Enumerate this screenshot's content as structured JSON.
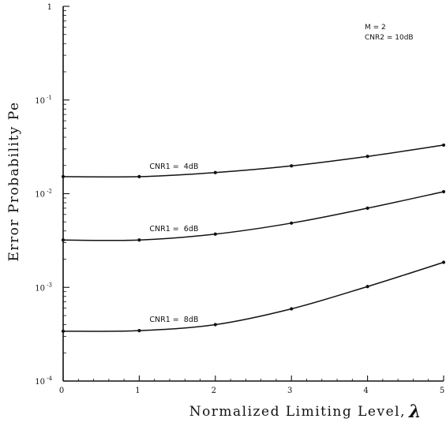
{
  "chart_data": {
    "type": "line",
    "title": "",
    "xlabel": "Normalized Limiting Level,",
    "xlabel_symbol": "λ",
    "ylabel": "Error Probability Pe",
    "xlim": [
      0,
      5
    ],
    "ylim": [
      0.0001,
      1
    ],
    "yscale": "log",
    "grid": false,
    "xticks": [
      "0",
      "1",
      "2",
      "3",
      "4",
      "5"
    ],
    "yticks": [
      {
        "value": 1,
        "base": "1",
        "exp": ""
      },
      {
        "value": 0.1,
        "base": "10",
        "exp": "-1"
      },
      {
        "value": 0.01,
        "base": "10",
        "exp": "-2"
      },
      {
        "value": 0.001,
        "base": "10",
        "exp": "-3"
      },
      {
        "value": 0.0001,
        "base": "10",
        "exp": "-4"
      }
    ],
    "annotations": [
      "M = 2",
      "CNR2 = 10dB"
    ],
    "series": [
      {
        "name": "CNR1 =  4dB",
        "x": [
          0,
          1,
          2,
          3,
          4,
          5
        ],
        "values": [
          0.0152,
          0.0152,
          0.0168,
          0.0198,
          0.025,
          0.033
        ]
      },
      {
        "name": "CNR1 =  6dB",
        "x": [
          0,
          1,
          2,
          3,
          4,
          5
        ],
        "values": [
          0.0032,
          0.0032,
          0.0037,
          0.00485,
          0.007,
          0.0105
        ]
      },
      {
        "name": "CNR1 =  8dB",
        "x": [
          0,
          1,
          2,
          3,
          4,
          5
        ],
        "values": [
          0.00034,
          0.000345,
          0.0004,
          0.00059,
          0.00102,
          0.00185
        ]
      }
    ]
  }
}
